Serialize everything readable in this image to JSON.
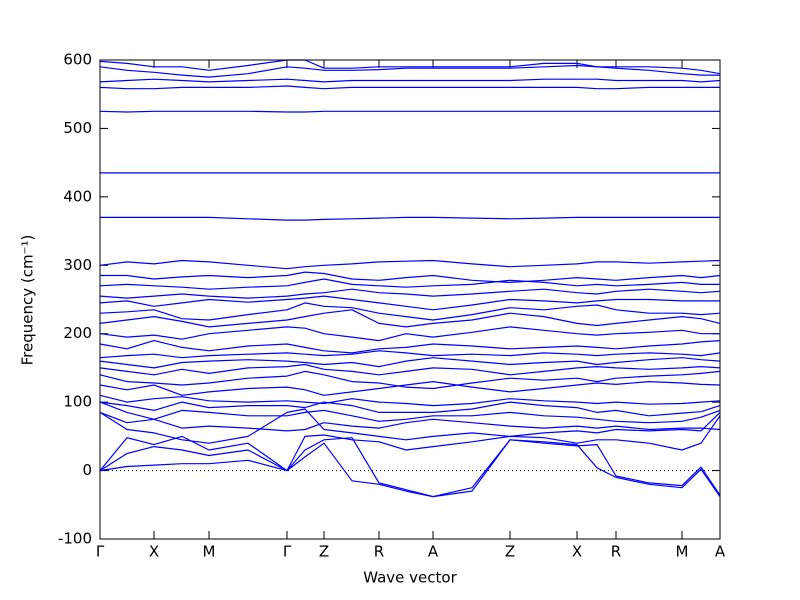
{
  "chart_data": {
    "type": "line",
    "xlabel": "Wave vector",
    "ylabel": "Frequency (cm⁻¹)",
    "xlim": [
      0,
      620
    ],
    "ylim": [
      -100,
      600
    ],
    "xticks": [
      {
        "value": 0,
        "label": "Γ"
      },
      {
        "value": 54,
        "label": "X"
      },
      {
        "value": 109,
        "label": "M"
      },
      {
        "value": 187,
        "label": "Γ"
      },
      {
        "value": 224,
        "label": "Z"
      },
      {
        "value": 279,
        "label": "R"
      },
      {
        "value": 333,
        "label": "A"
      },
      {
        "value": 410,
        "label": "Z"
      },
      {
        "value": 477,
        "label": "X"
      },
      {
        "value": 516,
        "label": "R"
      },
      {
        "value": 582,
        "label": "M"
      },
      {
        "value": 620,
        "label": "A"
      }
    ],
    "yticks": [
      -100,
      0,
      100,
      200,
      300,
      400,
      500,
      600
    ],
    "hline": 0,
    "color": "#0000ff",
    "x": [
      0,
      27,
      54,
      82,
      109,
      148,
      187,
      205,
      224,
      252,
      279,
      306,
      333,
      372,
      410,
      444,
      477,
      497,
      516,
      549,
      582,
      601,
      620
    ],
    "series": [
      {
        "values": [
          0,
          6,
          8,
          10,
          10,
          15,
          0,
          20,
          40,
          -15,
          -20,
          -30,
          -38,
          -30,
          45,
          42,
          38,
          4,
          -10,
          -20,
          -25,
          2,
          -38
        ]
      },
      {
        "values": [
          0,
          25,
          35,
          30,
          22,
          30,
          0,
          30,
          45,
          48,
          -18,
          -28,
          -38,
          -25,
          45,
          40,
          36,
          38,
          -8,
          -18,
          -22,
          5,
          -36
        ]
      },
      {
        "values": [
          0,
          48,
          38,
          50,
          30,
          40,
          0,
          50,
          52,
          45,
          42,
          30,
          35,
          42,
          50,
          48,
          40,
          45,
          45,
          40,
          30,
          40,
          80
        ]
      },
      {
        "values": [
          85,
          60,
          55,
          45,
          40,
          50,
          85,
          90,
          60,
          55,
          50,
          45,
          50,
          55,
          50,
          55,
          58,
          55,
          60,
          58,
          60,
          58,
          85
        ]
      },
      {
        "values": [
          85,
          70,
          75,
          62,
          65,
          62,
          58,
          60,
          70,
          65,
          62,
          70,
          75,
          70,
          65,
          62,
          65,
          62,
          65,
          60,
          62,
          62,
          60
        ]
      },
      {
        "values": [
          100,
          85,
          75,
          88,
          85,
          80,
          80,
          85,
          88,
          80,
          72,
          75,
          80,
          80,
          85,
          80,
          78,
          75,
          72,
          70,
          72,
          78,
          88
        ]
      },
      {
        "values": [
          100,
          95,
          88,
          100,
          92,
          95,
          95,
          92,
          100,
          95,
          85,
          85,
          85,
          90,
          100,
          95,
          92,
          85,
          88,
          80,
          84,
          86,
          95
        ]
      },
      {
        "values": [
          110,
          100,
          105,
          108,
          102,
          100,
          102,
          100,
          98,
          105,
          100,
          98,
          95,
          98,
          105,
          102,
          100,
          98,
          100,
          97,
          98,
          100,
          102
        ]
      },
      {
        "values": [
          125,
          118,
          125,
          110,
          115,
          120,
          122,
          118,
          110,
          115,
          120,
          125,
          130,
          122,
          115,
          120,
          125,
          128,
          126,
          130,
          128,
          126,
          125
        ]
      },
      {
        "values": [
          140,
          130,
          128,
          125,
          128,
          135,
          138,
          145,
          140,
          130,
          128,
          122,
          120,
          128,
          135,
          132,
          135,
          130,
          135,
          138,
          140,
          142,
          145
        ]
      },
      {
        "values": [
          150,
          145,
          140,
          148,
          142,
          150,
          152,
          155,
          148,
          145,
          140,
          145,
          150,
          148,
          140,
          145,
          150,
          152,
          150,
          148,
          150,
          152,
          150
        ]
      },
      {
        "values": [
          160,
          155,
          150,
          158,
          160,
          162,
          160,
          158,
          155,
          158,
          152,
          160,
          165,
          160,
          155,
          158,
          160,
          155,
          158,
          162,
          165,
          162,
          160
        ]
      },
      {
        "values": [
          165,
          168,
          170,
          165,
          168,
          170,
          172,
          170,
          168,
          170,
          175,
          172,
          168,
          170,
          168,
          172,
          170,
          168,
          170,
          172,
          170,
          168,
          172
        ]
      },
      {
        "values": [
          185,
          178,
          190,
          180,
          175,
          182,
          185,
          180,
          175,
          172,
          178,
          180,
          185,
          182,
          178,
          180,
          182,
          180,
          178,
          182,
          185,
          188,
          190
        ]
      },
      {
        "values": [
          200,
          195,
          198,
          192,
          200,
          205,
          210,
          208,
          200,
          195,
          190,
          200,
          195,
          202,
          210,
          205,
          200,
          198,
          200,
          202,
          205,
          200,
          200
        ]
      },
      {
        "values": [
          215,
          220,
          225,
          218,
          210,
          215,
          220,
          225,
          230,
          235,
          215,
          210,
          215,
          220,
          230,
          225,
          215,
          212,
          215,
          220,
          225,
          222,
          215
        ]
      },
      {
        "values": [
          230,
          232,
          235,
          222,
          220,
          228,
          235,
          245,
          240,
          238,
          230,
          225,
          220,
          228,
          238,
          235,
          240,
          242,
          235,
          230,
          230,
          228,
          230
        ]
      },
      {
        "values": [
          245,
          248,
          240,
          245,
          250,
          246,
          250,
          252,
          255,
          250,
          245,
          240,
          235,
          242,
          250,
          248,
          245,
          248,
          250,
          250,
          248,
          248,
          248
        ]
      },
      {
        "values": [
          255,
          252,
          255,
          258,
          255,
          252,
          255,
          258,
          260,
          265,
          260,
          258,
          255,
          258,
          262,
          265,
          260,
          258,
          262,
          265,
          262,
          260,
          262
        ]
      },
      {
        "values": [
          270,
          272,
          270,
          268,
          265,
          268,
          270,
          275,
          280,
          272,
          270,
          268,
          270,
          272,
          278,
          275,
          270,
          272,
          270,
          272,
          275,
          272,
          272
        ]
      },
      {
        "values": [
          285,
          285,
          280,
          283,
          285,
          282,
          285,
          290,
          288,
          280,
          278,
          282,
          285,
          278,
          275,
          278,
          282,
          280,
          278,
          282,
          285,
          282,
          285
        ]
      },
      {
        "values": [
          300,
          305,
          302,
          307,
          305,
          300,
          295,
          298,
          300,
          302,
          305,
          306,
          307,
          302,
          298,
          300,
          302,
          305,
          305,
          303,
          305,
          306,
          307
        ]
      },
      {
        "values": [
          370,
          370,
          370,
          370,
          370,
          368,
          366,
          366,
          367,
          368,
          369,
          370,
          370,
          369,
          368,
          369,
          370,
          370,
          370,
          370,
          370,
          370,
          370
        ]
      },
      {
        "values": [
          435,
          435,
          435,
          435,
          435,
          435,
          435,
          435,
          435,
          435,
          435,
          435,
          435,
          435,
          435,
          435,
          435,
          435,
          435,
          435,
          435,
          435,
          435
        ]
      },
      {
        "values": [
          525,
          524,
          525,
          525,
          525,
          525,
          524,
          524,
          525,
          525,
          525,
          525,
          525,
          525,
          525,
          525,
          525,
          525,
          525,
          525,
          525,
          525,
          525
        ]
      },
      {
        "values": [
          560,
          558,
          558,
          560,
          560,
          560,
          562,
          560,
          558,
          560,
          560,
          560,
          560,
          560,
          560,
          560,
          560,
          558,
          558,
          560,
          560,
          560,
          560
        ]
      },
      {
        "values": [
          568,
          570,
          572,
          570,
          568,
          570,
          572,
          570,
          568,
          570,
          570,
          570,
          570,
          570,
          570,
          572,
          572,
          572,
          570,
          570,
          570,
          568,
          570
        ]
      },
      {
        "values": [
          590,
          585,
          582,
          578,
          575,
          580,
          590,
          588,
          585,
          585,
          586,
          588,
          588,
          588,
          588,
          590,
          592,
          590,
          588,
          585,
          580,
          578,
          578
        ]
      },
      {
        "values": [
          598,
          595,
          590,
          590,
          585,
          592,
          600,
          600,
          588,
          588,
          590,
          590,
          590,
          590,
          590,
          595,
          595,
          590,
          590,
          590,
          588,
          585,
          580
        ]
      }
    ]
  }
}
